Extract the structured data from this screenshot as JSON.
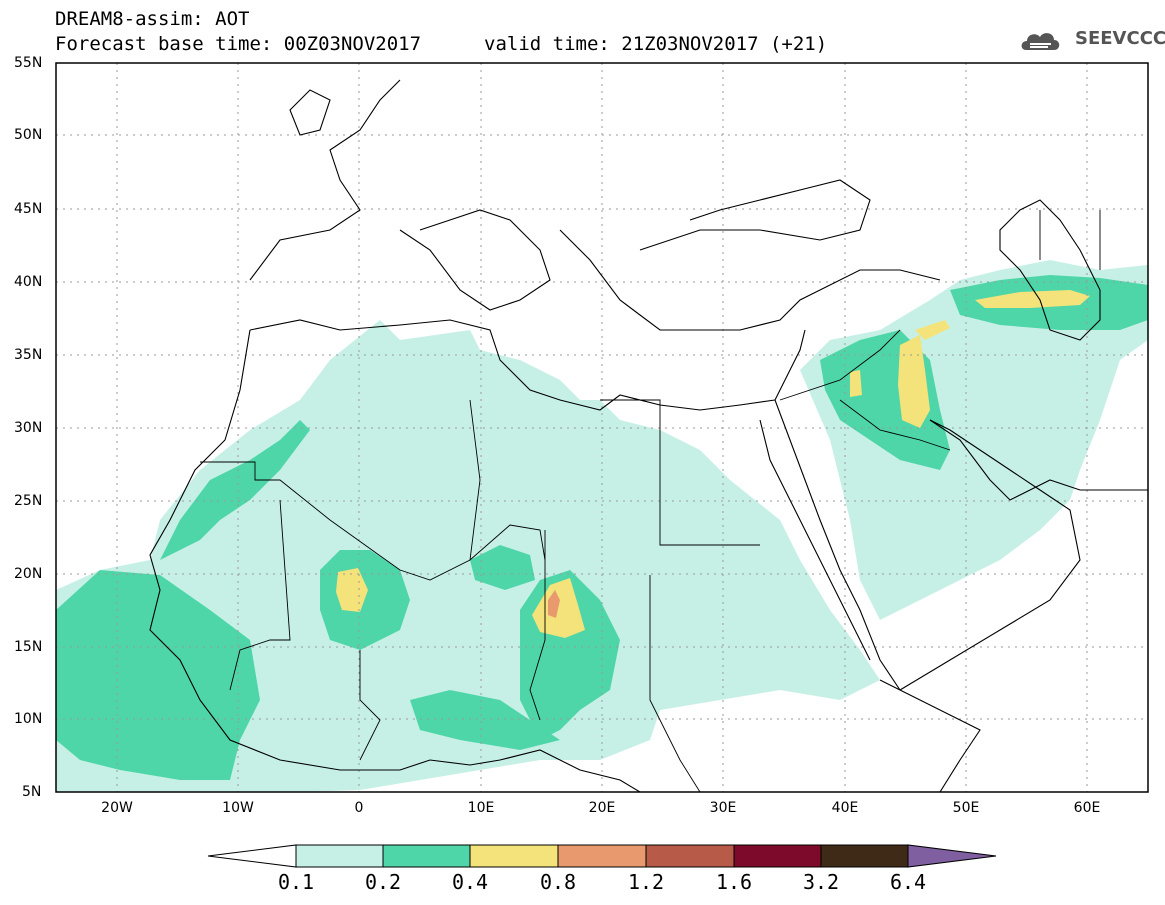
{
  "header": {
    "title_line1": "DREAM8-assim: AOT",
    "title_line2": "Forecast base time: 00Z03NOV2017",
    "valid_time": "valid time: 21Z03NOV2017 (+21)",
    "logo_text": "SEEVCCC"
  },
  "map": {
    "lat_labels": [
      "55N",
      "50N",
      "45N",
      "40N",
      "35N",
      "30N",
      "25N",
      "20N",
      "15N",
      "10N",
      "5N"
    ],
    "lon_labels": [
      "20W",
      "10W",
      "0",
      "10E",
      "20E",
      "30E",
      "40E",
      "50E",
      "60E"
    ],
    "lon_range": [
      -25,
      65
    ],
    "lat_range": [
      5,
      55
    ],
    "grid": true
  },
  "colorbar": {
    "levels": [
      "0.1",
      "0.2",
      "0.4",
      "0.8",
      "1.2",
      "1.6",
      "3.2",
      "6.4"
    ],
    "colors": [
      "#ffffff",
      "#c6f0e6",
      "#4ed6a8",
      "#f4e37a",
      "#e89a6e",
      "#b85a48",
      "#7d0a2a",
      "#3e2a17",
      "#7f5fa0"
    ]
  }
}
